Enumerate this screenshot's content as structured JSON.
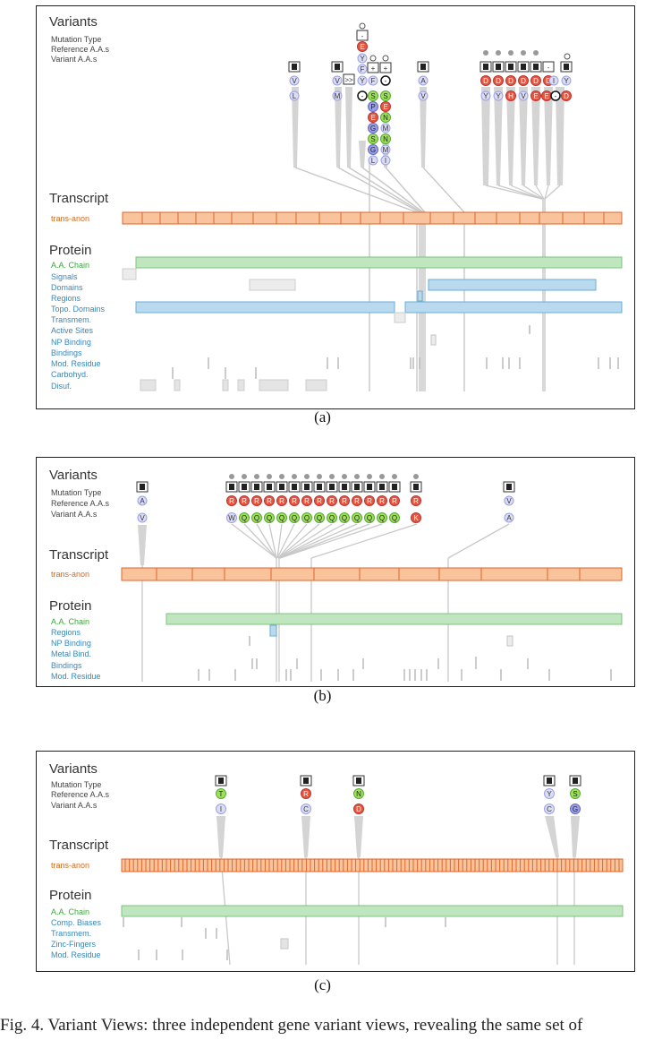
{
  "panels": [
    {
      "id": "a",
      "caption": "(a)",
      "variants_heading": "Variants",
      "variant_rows": [
        "Mutation Type",
        "Reference A.A.s",
        "Variant A.A.s"
      ],
      "transcript_heading": "Transcript",
      "transcript_name": "trans-anon",
      "protein_heading": "Protein",
      "protein_tracks": [
        "A.A. Chain",
        "Signals",
        "Domains",
        "Regions",
        "Topo. Domains",
        "Transmem.",
        "Active Sites",
        "NP Binding",
        "Bindings",
        "Mod. Residue",
        "Carbohyd.",
        "Disuf."
      ]
    },
    {
      "id": "b",
      "caption": "(b)",
      "variants_heading": "Variants",
      "variant_rows": [
        "Mutation Type",
        "Reference A.A.s",
        "Variant A.A.s"
      ],
      "transcript_heading": "Transcript",
      "transcript_name": "trans-anon",
      "protein_heading": "Protein",
      "protein_tracks": [
        "A.A. Chain",
        "Regions",
        "NP Binding",
        "Metal Bind.",
        "Bindings",
        "Mod. Residue"
      ]
    },
    {
      "id": "c",
      "caption": "(c)",
      "variants_heading": "Variants",
      "variant_rows": [
        "Mutation Type",
        "Reference A.A.s",
        "Variant A.A.s"
      ],
      "transcript_heading": "Transcript",
      "transcript_name": "trans-anon",
      "protein_heading": "Protein",
      "protein_tracks": [
        "A.A. Chain",
        "Comp. Biases",
        "Transmem.",
        "Zinc-Fingers",
        "Mod. Residue"
      ]
    }
  ],
  "variants_a": [
    {
      "ref": "V",
      "alt": "L"
    },
    {
      "ref": "V",
      "alt": "M"
    },
    {
      "ref": "A",
      "alt": "V"
    },
    {
      "ref": [
        "D",
        "D",
        "D",
        "D",
        "D",
        "D",
        "I",
        "Y"
      ],
      "alt": [
        "Y",
        "Y",
        "H",
        "V",
        "E",
        "E",
        "",
        "D"
      ]
    }
  ],
  "variants_b": [
    {
      "ref": "A",
      "alt": "V"
    },
    {
      "ref": [
        "R",
        "R",
        "R",
        "R",
        "R",
        "R",
        "R",
        "R",
        "R",
        "R",
        "R",
        "R",
        "R",
        "R"
      ],
      "alt": [
        "W",
        "Q",
        "Q",
        "Q",
        "Q",
        "Q",
        "Q",
        "Q",
        "Q",
        "Q",
        "Q",
        "Q",
        "Q",
        "Q"
      ]
    },
    {
      "ref": "R",
      "alt": "K"
    },
    {
      "ref": "V",
      "alt": "A"
    }
  ],
  "variants_c": [
    {
      "ref": "T",
      "alt": "I"
    },
    {
      "ref": "R",
      "alt": "C"
    },
    {
      "ref": "N",
      "alt": "D"
    },
    {
      "ref": "Y",
      "alt": "C"
    },
    {
      "ref": "S",
      "alt": "G"
    }
  ],
  "colors": {
    "transcript_fill": "#f9c39b",
    "transcript_stroke": "#e0662a",
    "chain_fill": "#bfe6bf",
    "chain_stroke": "#7cc47c",
    "domain_fill": "#b9d9ee",
    "domain_stroke": "#6aaed6",
    "track_label": "#3a86b8",
    "chain_label": "#3aa83a",
    "transcript_label": "#d2691e",
    "red_node": "#e8553c",
    "green_node": "#9ee05a",
    "blue_node": "#9aa0e6",
    "lavender_node": "#dcdcf4",
    "connector": "#c8c8c8"
  },
  "bottom_text": "Fig. 4. Variant Views: three independent gene variant views, revealing the same set of"
}
